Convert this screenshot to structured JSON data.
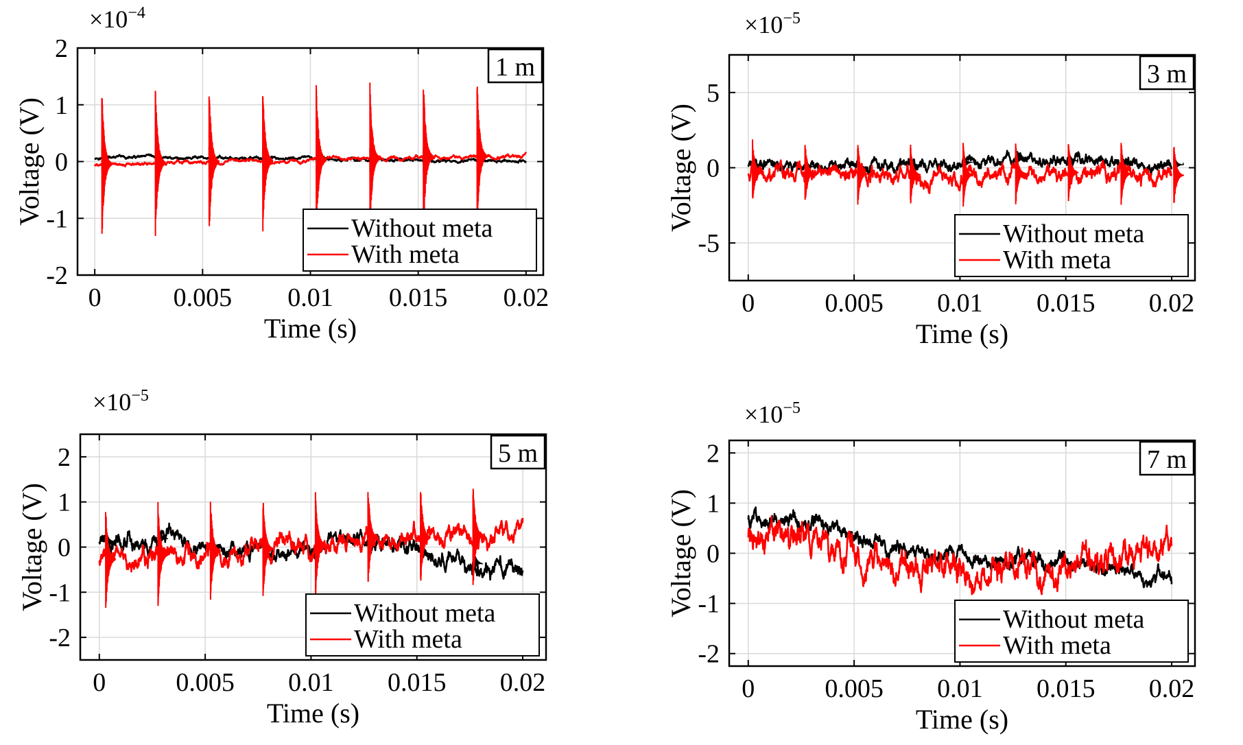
{
  "chart_data": [
    {
      "type": "line",
      "label": "1 m",
      "scale": "×10",
      "exponent": "−4",
      "xlabel": "Time (s)",
      "ylabel": "Voltage (V)",
      "xlim": [
        -0.0008,
        0.0208
      ],
      "ylim": [
        -2,
        2
      ],
      "xticks": [
        0,
        0.005,
        0.01,
        0.015,
        0.02
      ],
      "xtick_labels": [
        "0",
        "0.005",
        "0.01",
        "0.015",
        "0.02"
      ],
      "yticks": [
        -2,
        -1,
        0,
        1,
        2
      ],
      "ytick_labels": [
        "-2",
        "-1",
        "0",
        "1",
        "2"
      ],
      "grid": true,
      "legend_position": "bottom-right",
      "pulse_times": [
        0.00033,
        0.00281,
        0.0053,
        0.00779,
        0.01027,
        0.01276,
        0.01524,
        0.01773
      ],
      "series": [
        {
          "name": "Without meta",
          "color": "#000000",
          "x": [
            0,
            0.005,
            0.01,
            0.015,
            0.02
          ],
          "baseline": [
            0.07,
            0.06,
            0.05,
            0.02,
            0.0
          ],
          "pulse_amplitude": 0.25,
          "noise": 0.01
        },
        {
          "name": "With meta",
          "color": "#ff0000",
          "x": [
            0,
            0.005,
            0.01,
            0.015,
            0.02
          ],
          "baseline": [
            -0.05,
            -0.01,
            0.02,
            0.08,
            0.1
          ],
          "pulse_amplitude": 1.38,
          "noise": 0.012
        }
      ]
    },
    {
      "type": "line",
      "label": "3 m",
      "scale": "×10",
      "exponent": "−5",
      "xlabel": "Time (s)",
      "ylabel": "Voltage (V)",
      "xlim": [
        -0.0009,
        0.0211
      ],
      "ylim": [
        -7.5,
        7.5
      ],
      "xticks": [
        0,
        0.005,
        0.01,
        0.015,
        0.02
      ],
      "xtick_labels": [
        "0",
        "0.005",
        "0.01",
        "0.015",
        "0.02"
      ],
      "yticks": [
        -5,
        0,
        5
      ],
      "ytick_labels": [
        "-5",
        "0",
        "5"
      ],
      "grid": true,
      "legend_position": "bottom-right",
      "pulse_times": [
        0.0002,
        0.00268,
        0.00517,
        0.00766,
        0.01015,
        0.01263,
        0.01512,
        0.01761,
        0.0201
      ],
      "series": [
        {
          "name": "Without meta",
          "color": "#000000",
          "x": [
            0,
            0.005,
            0.01,
            0.0125,
            0.015,
            0.02
          ],
          "baseline": [
            0.2,
            0.0,
            0.3,
            0.6,
            0.5,
            0.2
          ],
          "pulse_amplitude": 0.7,
          "noise": 0.15
        },
        {
          "name": "With meta",
          "color": "#ff0000",
          "x": [
            0,
            0.005,
            0.01,
            0.015,
            0.02
          ],
          "baseline": [
            -0.3,
            -0.4,
            -0.5,
            -0.3,
            -0.5
          ],
          "pulse_amplitude": 2.2,
          "noise": 0.2
        }
      ]
    },
    {
      "type": "line",
      "label": "5 m",
      "scale": "×10",
      "exponent": "−5",
      "xlabel": "Time (s)",
      "ylabel": "Voltage (V)",
      "xlim": [
        -0.0009,
        0.0211
      ],
      "ylim": [
        -2.5,
        2.5
      ],
      "xticks": [
        0,
        0.005,
        0.01,
        0.015,
        0.02
      ],
      "xtick_labels": [
        "0",
        "0.005",
        "0.01",
        "0.015",
        "0.02"
      ],
      "yticks": [
        -2,
        -1,
        0,
        1,
        2
      ],
      "ytick_labels": [
        "-2",
        "-1",
        "0",
        "1",
        "2"
      ],
      "grid": true,
      "legend_position": "bottom-right",
      "pulse_times": [
        0.0003,
        0.00277,
        0.00525,
        0.00773,
        0.01021,
        0.01269,
        0.01517,
        0.01765
      ],
      "series": [
        {
          "name": "Without meta",
          "color": "#000000",
          "x": [
            0,
            0.003,
            0.007,
            0.01,
            0.012,
            0.015,
            0.0175,
            0.02
          ],
          "baseline": [
            0.1,
            0.2,
            -0.1,
            0.0,
            0.2,
            -0.1,
            -0.3,
            -0.6
          ],
          "pulse_amplitude": 0.35,
          "noise": 0.07
        },
        {
          "name": "With meta",
          "color": "#ff0000",
          "x": [
            0,
            0.005,
            0.01,
            0.012,
            0.015,
            0.02
          ],
          "baseline": [
            -0.3,
            -0.1,
            0.0,
            0.2,
            0.2,
            0.3
          ],
          "pulse_amplitude": 1.2,
          "noise": 0.08
        }
      ]
    },
    {
      "type": "line",
      "label": "7 m",
      "scale": "×10",
      "exponent": "−5",
      "xlabel": "Time (s)",
      "ylabel": "Voltage (V)",
      "xlim": [
        -0.0009,
        0.0211
      ],
      "ylim": [
        -2.25,
        2.25
      ],
      "xticks": [
        0,
        0.005,
        0.01,
        0.015,
        0.02
      ],
      "xtick_labels": [
        "0",
        "0.005",
        "0.01",
        "0.015",
        "0.02"
      ],
      "yticks": [
        -2,
        -1,
        0,
        1,
        2
      ],
      "ytick_labels": [
        "-2",
        "-1",
        "0",
        "1",
        "2"
      ],
      "grid": true,
      "legend_position": "bottom-right",
      "pulse_times": [],
      "series": [
        {
          "name": "Without meta",
          "color": "#000000",
          "x": [
            0,
            0.001,
            0.004,
            0.007,
            0.01,
            0.015,
            0.02
          ],
          "baseline": [
            0.7,
            0.8,
            0.5,
            0.1,
            -0.1,
            -0.15,
            -0.5
          ],
          "pulse_amplitude": 0,
          "noise": 0.06
        },
        {
          "name": "With meta",
          "color": "#ff0000",
          "x": [
            0,
            0.003,
            0.007,
            0.01,
            0.015,
            0.018,
            0.02
          ],
          "baseline": [
            0.4,
            0.2,
            -0.3,
            -0.4,
            -0.3,
            0.0,
            0.1
          ],
          "pulse_amplitude": 0,
          "noise": 0.11
        }
      ]
    }
  ]
}
